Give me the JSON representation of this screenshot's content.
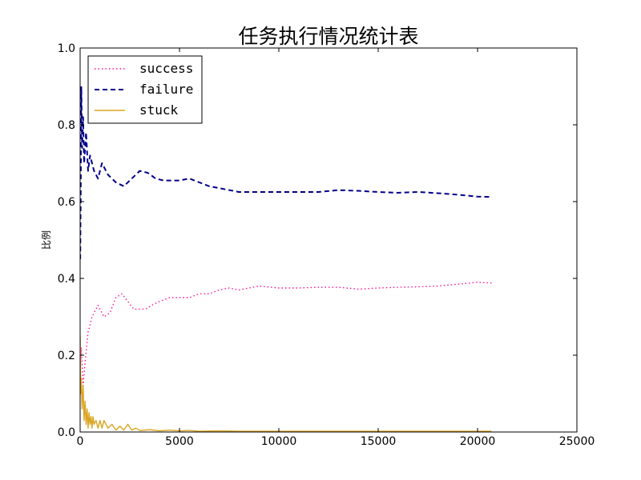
{
  "chart_data": {
    "type": "line",
    "title": "任务执行情况统计表",
    "xlabel": "",
    "ylabel": "比例",
    "xlim": [
      0,
      25000
    ],
    "ylim": [
      0,
      1.0
    ],
    "x_ticks": [
      "0",
      "5000",
      "10000",
      "15000",
      "20000",
      "25000"
    ],
    "y_ticks": [
      "0.0",
      "0.2",
      "0.4",
      "0.6",
      "0.8",
      "1.0"
    ],
    "grid": false,
    "legend_position": "top-left",
    "series": [
      {
        "name": "success",
        "color": "#ff1493",
        "style": "dotted",
        "points": [
          [
            10,
            0.16
          ],
          [
            60,
            0.22
          ],
          [
            150,
            0.12
          ],
          [
            250,
            0.18
          ],
          [
            400,
            0.26
          ],
          [
            600,
            0.3
          ],
          [
            900,
            0.33
          ],
          [
            1200,
            0.3
          ],
          [
            1500,
            0.31
          ],
          [
            1800,
            0.35
          ],
          [
            2100,
            0.36
          ],
          [
            2400,
            0.34
          ],
          [
            2700,
            0.32
          ],
          [
            3000,
            0.32
          ],
          [
            3300,
            0.32
          ],
          [
            3600,
            0.33
          ],
          [
            4000,
            0.34
          ],
          [
            4500,
            0.35
          ],
          [
            5000,
            0.35
          ],
          [
            5500,
            0.35
          ],
          [
            6000,
            0.36
          ],
          [
            6500,
            0.36
          ],
          [
            7000,
            0.37
          ],
          [
            7500,
            0.375
          ],
          [
            8000,
            0.37
          ],
          [
            8500,
            0.375
          ],
          [
            9000,
            0.38
          ],
          [
            10000,
            0.375
          ],
          [
            11000,
            0.375
          ],
          [
            12000,
            0.377
          ],
          [
            13000,
            0.377
          ],
          [
            14000,
            0.372
          ],
          [
            15000,
            0.375
          ],
          [
            16000,
            0.377
          ],
          [
            17000,
            0.378
          ],
          [
            18000,
            0.38
          ],
          [
            19000,
            0.385
          ],
          [
            20000,
            0.39
          ],
          [
            20700,
            0.388
          ]
        ]
      },
      {
        "name": "failure",
        "color": "#00008b",
        "style": "dashed",
        "points": [
          [
            5,
            0.45
          ],
          [
            30,
            0.62
          ],
          [
            60,
            0.9
          ],
          [
            100,
            0.74
          ],
          [
            150,
            0.82
          ],
          [
            200,
            0.7
          ],
          [
            300,
            0.78
          ],
          [
            400,
            0.68
          ],
          [
            500,
            0.72
          ],
          [
            700,
            0.68
          ],
          [
            900,
            0.66
          ],
          [
            1100,
            0.7
          ],
          [
            1400,
            0.67
          ],
          [
            1800,
            0.65
          ],
          [
            2200,
            0.64
          ],
          [
            2600,
            0.66
          ],
          [
            3000,
            0.68
          ],
          [
            3400,
            0.675
          ],
          [
            3800,
            0.66
          ],
          [
            4200,
            0.655
          ],
          [
            4600,
            0.655
          ],
          [
            5000,
            0.655
          ],
          [
            5500,
            0.66
          ],
          [
            6000,
            0.65
          ],
          [
            6500,
            0.64
          ],
          [
            7000,
            0.635
          ],
          [
            7500,
            0.63
          ],
          [
            8000,
            0.625
          ],
          [
            9000,
            0.625
          ],
          [
            10000,
            0.625
          ],
          [
            11000,
            0.625
          ],
          [
            12000,
            0.625
          ],
          [
            13000,
            0.63
          ],
          [
            14000,
            0.628
          ],
          [
            15000,
            0.625
          ],
          [
            16000,
            0.623
          ],
          [
            17000,
            0.625
          ],
          [
            18000,
            0.622
          ],
          [
            19000,
            0.618
          ],
          [
            20000,
            0.613
          ],
          [
            20700,
            0.612
          ]
        ]
      },
      {
        "name": "stuck",
        "color": "#daa520",
        "style": "solid",
        "points": [
          [
            0,
            0.25
          ],
          [
            30,
            0.1
          ],
          [
            60,
            0.14
          ],
          [
            100,
            0.06
          ],
          [
            150,
            0.12
          ],
          [
            200,
            0.03
          ],
          [
            250,
            0.08
          ],
          [
            300,
            0.02
          ],
          [
            350,
            0.06
          ],
          [
            400,
            0.01
          ],
          [
            450,
            0.05
          ],
          [
            500,
            0.02
          ],
          [
            550,
            0.04
          ],
          [
            600,
            0.01
          ],
          [
            650,
            0.04
          ],
          [
            700,
            0.02
          ],
          [
            800,
            0.03
          ],
          [
            900,
            0.01
          ],
          [
            1000,
            0.03
          ],
          [
            1100,
            0.01
          ],
          [
            1200,
            0.03
          ],
          [
            1400,
            0.01
          ],
          [
            1600,
            0.02
          ],
          [
            1800,
            0.005
          ],
          [
            2000,
            0.015
          ],
          [
            2200,
            0.005
          ],
          [
            2400,
            0.02
          ],
          [
            2600,
            0.005
          ],
          [
            2800,
            0.01
          ],
          [
            3000,
            0.004
          ],
          [
            3500,
            0.006
          ],
          [
            4000,
            0.003
          ],
          [
            4500,
            0.005
          ],
          [
            5000,
            0.003
          ],
          [
            5500,
            0.004
          ],
          [
            6000,
            0.002
          ],
          [
            7000,
            0.003
          ],
          [
            8000,
            0.002
          ],
          [
            9000,
            0.002
          ],
          [
            10000,
            0.002
          ],
          [
            12000,
            0.002
          ],
          [
            14000,
            0.002
          ],
          [
            16000,
            0.002
          ],
          [
            18000,
            0.002
          ],
          [
            20000,
            0.002
          ],
          [
            20700,
            0.002
          ]
        ]
      }
    ]
  }
}
